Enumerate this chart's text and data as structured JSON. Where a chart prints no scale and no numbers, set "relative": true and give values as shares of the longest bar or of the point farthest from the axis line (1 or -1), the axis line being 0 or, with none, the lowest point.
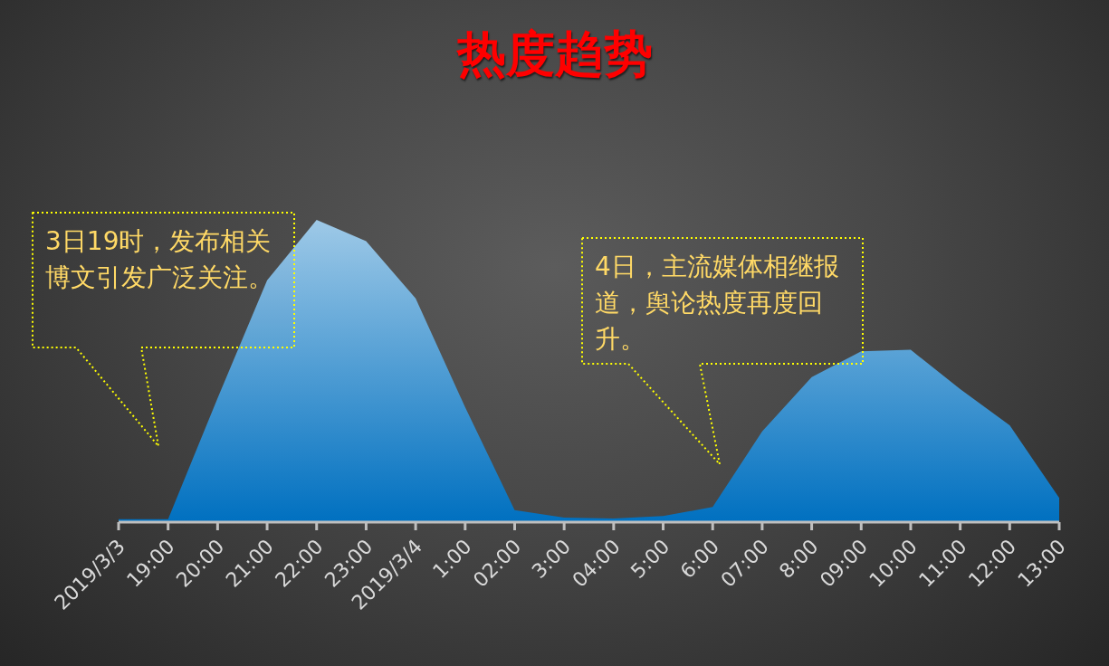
{
  "chart_data": {
    "type": "area",
    "title": "热度趋势",
    "categories": [
      "2019/3/3",
      "19:00",
      "20:00",
      "21:00",
      "22:00",
      "23:00",
      "2019/3/4",
      "1:00",
      "02:00",
      "3:00",
      "04:00",
      "5:00",
      "6:00",
      "07:00",
      "8:00",
      "09:00",
      "10:00",
      "11:00",
      "12:00",
      "13:00"
    ],
    "values": [
      0.01,
      0.01,
      0.41,
      0.8,
      1,
      0.93,
      0.74,
      0.38,
      0.04,
      0.015,
      0.012,
      0.02,
      0.05,
      0.3,
      0.48,
      0.565,
      0.57,
      0.44,
      0.32,
      0.08
    ],
    "color": "#0070c0",
    "relative": true,
    "annotations": [
      "3日19时，发布相关博文引发广泛关注。",
      "4日，主流媒体相继报道，舆论热度再度回升。"
    ]
  }
}
